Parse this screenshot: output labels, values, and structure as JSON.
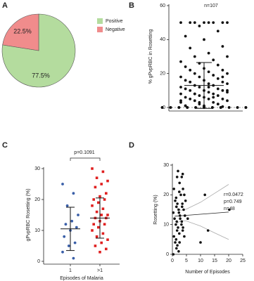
{
  "chart_data": [
    {
      "type": "pie",
      "panel": "A",
      "categories": [
        "Positive",
        "Negative"
      ],
      "values": [
        77.5,
        22.5
      ],
      "value_labels": [
        "77.5%",
        "22.5%"
      ],
      "colors": [
        "#b4dc9e",
        "#f08c8c"
      ],
      "legend": "top-right"
    },
    {
      "type": "strip",
      "panel": "B",
      "y_label": "% gPvpRBC in Rosetting",
      "annotation": "n=107",
      "ylim": [
        0,
        60
      ],
      "yticks": [
        0,
        20,
        40,
        60
      ],
      "series": [
        {
          "color": "#111111",
          "marker": "circle",
          "mean": 13,
          "sd": 13.5,
          "values": [
            0,
            0,
            0,
            0,
            0,
            0,
            0,
            0,
            0,
            0,
            0,
            0,
            0,
            0,
            0,
            0,
            0,
            0,
            0,
            0,
            0,
            0,
            0,
            0,
            0,
            0,
            0,
            0,
            0.5,
            1,
            1,
            2,
            2,
            3,
            3,
            4,
            4,
            5,
            5,
            5,
            6,
            6,
            7,
            7,
            8,
            8,
            8,
            9,
            9,
            10,
            10,
            10,
            11,
            11,
            12,
            12,
            13,
            13,
            14,
            14,
            15,
            15,
            16,
            16,
            17,
            18,
            18,
            19,
            20,
            20,
            21,
            22,
            22,
            23,
            24,
            25,
            26,
            27,
            28,
            30,
            30,
            32,
            35,
            36,
            40,
            42,
            45,
            48,
            50,
            50,
            50,
            50,
            50,
            50,
            50,
            50,
            1,
            2,
            3,
            4,
            6,
            8,
            10,
            12,
            15,
            18,
            0.5
          ]
        }
      ]
    },
    {
      "type": "strip",
      "panel": "C",
      "y_label": "gPvpRBC  Rosetting (%)",
      "x_label": "Episodes of Malaria",
      "annotation": "p=0.1091",
      "categories": [
        "1",
        ">1"
      ],
      "ylim": [
        0,
        30
      ],
      "yticks": [
        0,
        10,
        20,
        30
      ],
      "series": [
        {
          "color": "#3a5fa8",
          "marker": "circle",
          "mean": 10.5,
          "sd": 7,
          "values": [
            25,
            22,
            18,
            15,
            13,
            12,
            11,
            10,
            8,
            6,
            5,
            3,
            1
          ]
        },
        {
          "color": "#e02020",
          "marker": "square",
          "mean": 14,
          "sd": 6.5,
          "values": [
            30,
            29,
            27,
            26,
            25,
            24,
            22,
            21,
            20,
            20,
            19,
            18,
            17,
            16,
            15,
            15,
            14,
            14,
            13,
            12,
            12,
            11,
            10,
            9,
            8,
            7,
            6,
            5,
            4,
            3
          ]
        }
      ]
    },
    {
      "type": "scatter",
      "panel": "D",
      "x_label": "Number of Episodes",
      "y_label": "Rosetting (%)",
      "annotations": [
        "r=0.0472",
        "p=0.749",
        "n=48"
      ],
      "xlim": [
        0,
        25
      ],
      "xticks": [
        0,
        5,
        10,
        15,
        20,
        25
      ],
      "ylim": [
        0,
        30
      ],
      "yticks": [
        0,
        10,
        20,
        30
      ],
      "color": "#111111",
      "x": [
        1,
        1,
        1,
        1,
        1,
        1,
        1,
        1,
        1,
        1,
        1,
        1,
        2,
        2,
        2,
        2,
        2,
        2,
        2,
        2,
        2,
        2,
        2,
        2,
        3,
        3,
        3,
        3,
        3,
        3,
        3,
        3,
        3,
        4,
        4,
        4,
        4,
        4,
        4,
        4,
        4,
        4,
        4,
        5,
        10,
        12,
        12,
        20
      ],
      "values": [
        0,
        2,
        4,
        6,
        8,
        10,
        12,
        14,
        16,
        18,
        22,
        26,
        1,
        3,
        5,
        7,
        9,
        11,
        13,
        15,
        17,
        19,
        21,
        28,
        4,
        8,
        10,
        12,
        14,
        16,
        20,
        24,
        27,
        6,
        9,
        11,
        13,
        15,
        17,
        18,
        20,
        22,
        26,
        12,
        4,
        20,
        8,
        15
      ],
      "fit": {
        "x": [
          0.8,
          20
        ],
        "values": [
          12.8,
          14.2
        ]
      },
      "ci_upper": {
        "x": [
          0.8,
          3,
          5,
          10,
          15,
          20
        ],
        "values": [
          16,
          14.8,
          15.2,
          17.5,
          20.5,
          23.5
        ]
      },
      "ci_lower": {
        "x": [
          0.8,
          3,
          5,
          10,
          15,
          20
        ],
        "values": [
          9.8,
          11.4,
          11.2,
          9.5,
          7.2,
          5
        ]
      }
    }
  ]
}
